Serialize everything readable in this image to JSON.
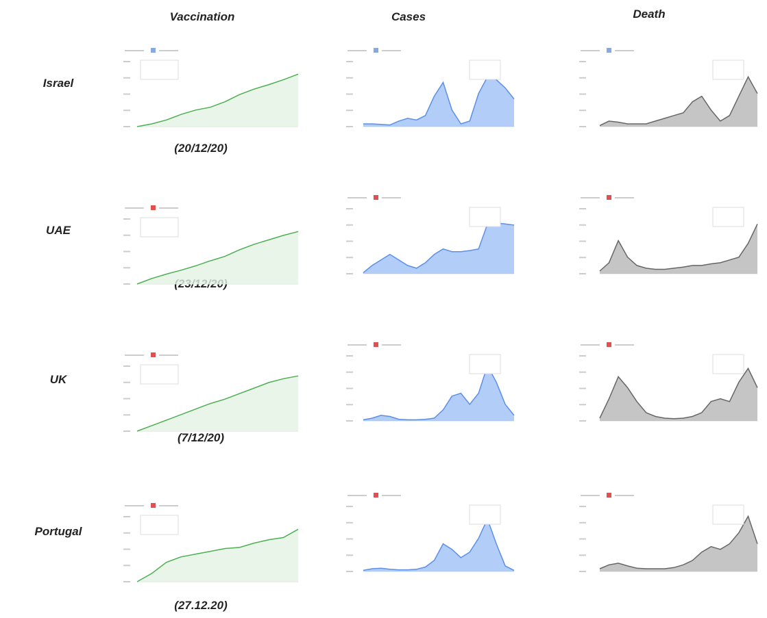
{
  "header": {
    "columns": [
      "Vaccination",
      "Cases",
      "Death"
    ]
  },
  "rows": [
    {
      "label": "Israel",
      "date": "(20/12/20)"
    },
    {
      "label": "UAE",
      "date": "(23/12/20)"
    },
    {
      "label": "UK",
      "date": "(7/12/20)"
    },
    {
      "label": "Portugal",
      "date": "(27.12.20)"
    }
  ]
}
